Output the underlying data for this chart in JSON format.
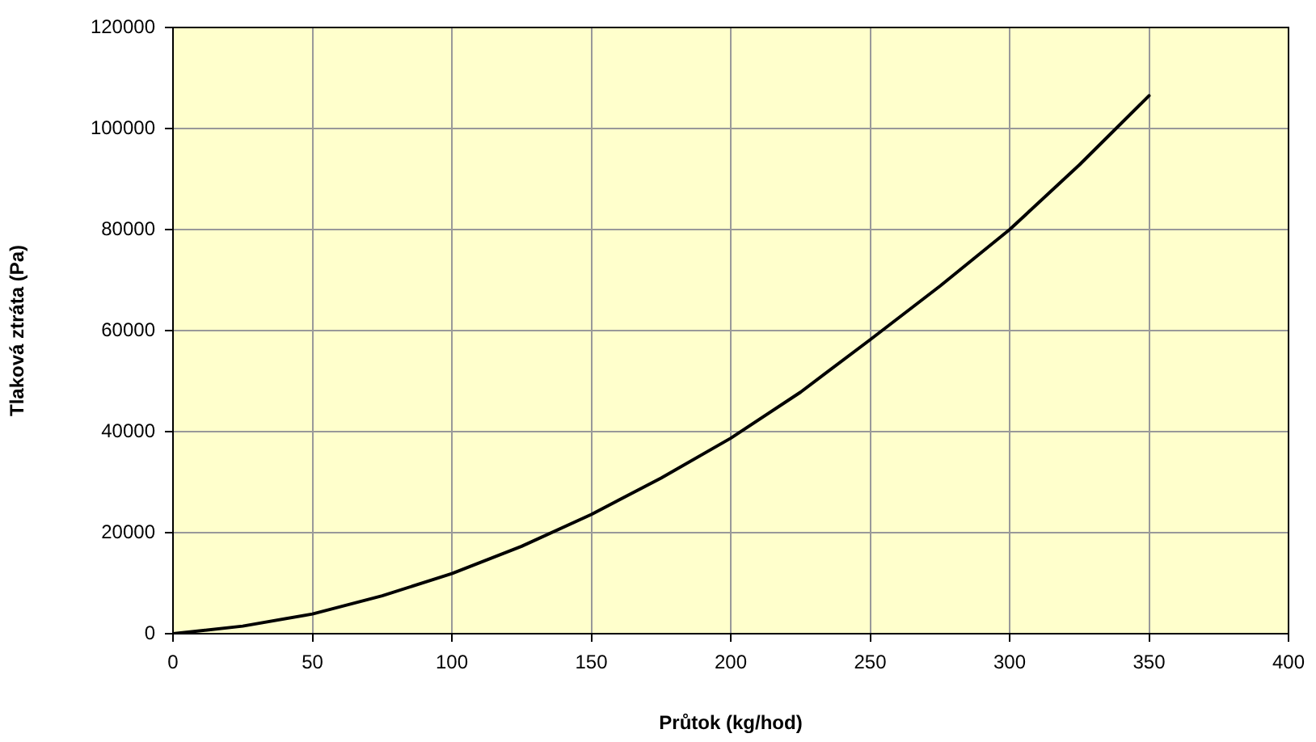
{
  "chart_data": {
    "type": "line",
    "xlabel": "Průtok (kg/hod)",
    "ylabel": "Tlaková ztráta (Pa)",
    "x": [
      0,
      25,
      50,
      75,
      100,
      125,
      150,
      175,
      200,
      225,
      250,
      275,
      300,
      325,
      350
    ],
    "series": [
      {
        "color": "#000000",
        "values": [
          0,
          1500,
          3900,
          7500,
          11900,
          17300,
          23600,
          30800,
          38700,
          47800,
          58200,
          68800,
          80000,
          92800,
          106500
        ]
      }
    ],
    "xlim": [
      0,
      400
    ],
    "xticks": [
      0,
      50,
      100,
      150,
      200,
      250,
      300,
      350,
      400
    ],
    "ylim": [
      0,
      120000
    ],
    "yticks": [
      0,
      20000,
      40000,
      60000,
      80000,
      100000,
      120000
    ],
    "grid": true,
    "legend": false,
    "marker": "none",
    "line_style": "solid"
  }
}
